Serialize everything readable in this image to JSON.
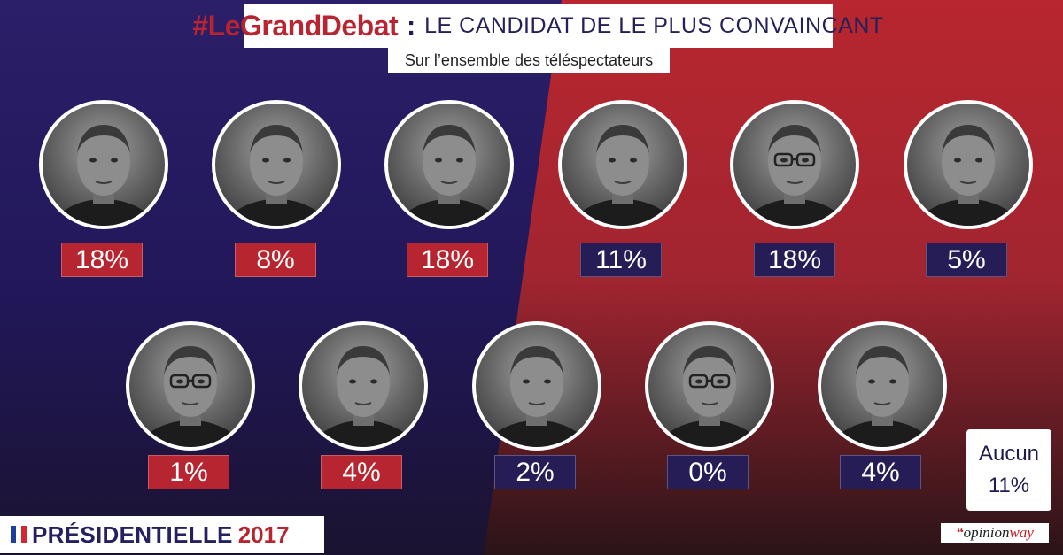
{
  "header": {
    "hashtag": "#LeGrandDebat",
    "colon": ":",
    "title": "LE CANDIDAT DE LE PLUS CONVAINCANT",
    "subtitle": "Sur l’ensemble des téléspectateurs"
  },
  "results": [
    {
      "value": "18%",
      "badge": "red",
      "glasses": false
    },
    {
      "value": "8%",
      "badge": "red",
      "glasses": false
    },
    {
      "value": "18%",
      "badge": "red",
      "glasses": false
    },
    {
      "value": "11%",
      "badge": "navy",
      "glasses": false
    },
    {
      "value": "18%",
      "badge": "navy",
      "glasses": true
    },
    {
      "value": "5%",
      "badge": "navy",
      "glasses": false
    },
    {
      "value": "1%",
      "badge": "red",
      "glasses": true
    },
    {
      "value": "4%",
      "badge": "red",
      "glasses": false
    },
    {
      "value": "2%",
      "badge": "navy",
      "glasses": false
    },
    {
      "value": "0%",
      "badge": "navy",
      "glasses": true
    },
    {
      "value": "4%",
      "badge": "navy",
      "glasses": false
    }
  ],
  "aucun": {
    "label": "Aucun",
    "value": "11%"
  },
  "footer": {
    "label": "PRÉSIDENTIELLE",
    "year": "2017"
  },
  "source": {
    "open_quote": "“",
    "name_part1": "opinion",
    "name_part2": "way"
  },
  "colors": {
    "navy": "#261d57",
    "red": "#b72630",
    "navy_bg": "#241a5c",
    "red_bg": "#b2252f",
    "flag_blue": "#1b3f9a",
    "flag_white": "#ffffff",
    "flag_red": "#d22733"
  }
}
